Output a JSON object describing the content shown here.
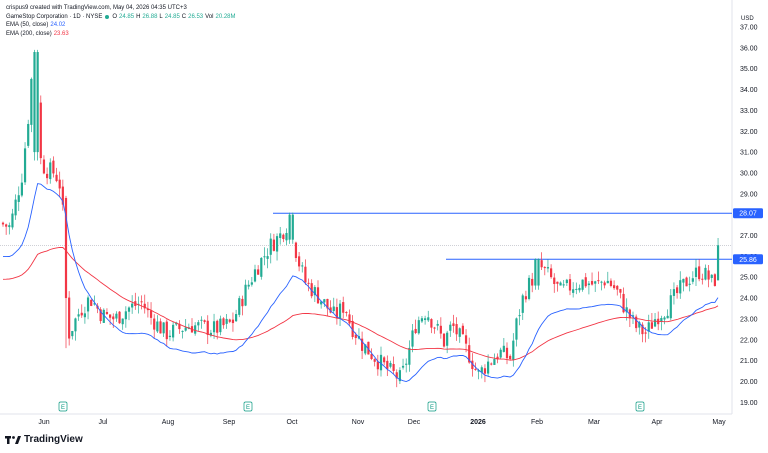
{
  "header": {
    "source": "crispus9 created with TradingView.com, May 04, 2026 04:35 UTC+3",
    "symbol": "GameStop Corporation · 1D · NYSE",
    "ohlc": {
      "o_label": "O",
      "o": "24.85",
      "h_label": "H",
      "h": "26.88",
      "l_label": "L",
      "l": "24.85",
      "c_label": "C",
      "c": "26.53",
      "vol_label": "Vol",
      "vol": "20.28M"
    },
    "ema50": {
      "label": "EMA (50, close)",
      "value": "24.02"
    },
    "ema200": {
      "label": "EMA (200, close)",
      "value": "23.63"
    }
  },
  "logo_text": "TradingView",
  "colors": {
    "up": "#22ab94",
    "down": "#f23645",
    "ema50": "#2962ff",
    "ema200": "#f23645",
    "hline": "#2962ff",
    "label_bg": "#2962ff"
  },
  "chart_data": {
    "type": "candlestick",
    "currency": "USD",
    "y_ticks": [
      "37.00",
      "36.00",
      "35.00",
      "34.00",
      "33.00",
      "32.00",
      "31.00",
      "30.00",
      "29.00",
      "28.00",
      "27.00",
      "26.00",
      "25.00",
      "24.00",
      "23.00",
      "22.00",
      "21.00",
      "20.00",
      "19.00"
    ],
    "ylim": [
      19,
      37
    ],
    "x_ticks": [
      "Jun",
      "Jul",
      "Aug",
      "Sep",
      "Oct",
      "Nov",
      "Dec",
      "2026",
      "Feb",
      "Mar",
      "Apr",
      "May"
    ],
    "earnings_markers": [
      "E",
      "E",
      "E",
      "E"
    ],
    "price_labels": [
      {
        "text": "28.07",
        "value": 28.07
      },
      {
        "text": "25.86",
        "value": 25.86
      }
    ],
    "last_close": 26.53,
    "ema50_last": 24.02,
    "ema200_last": 23.63
  }
}
